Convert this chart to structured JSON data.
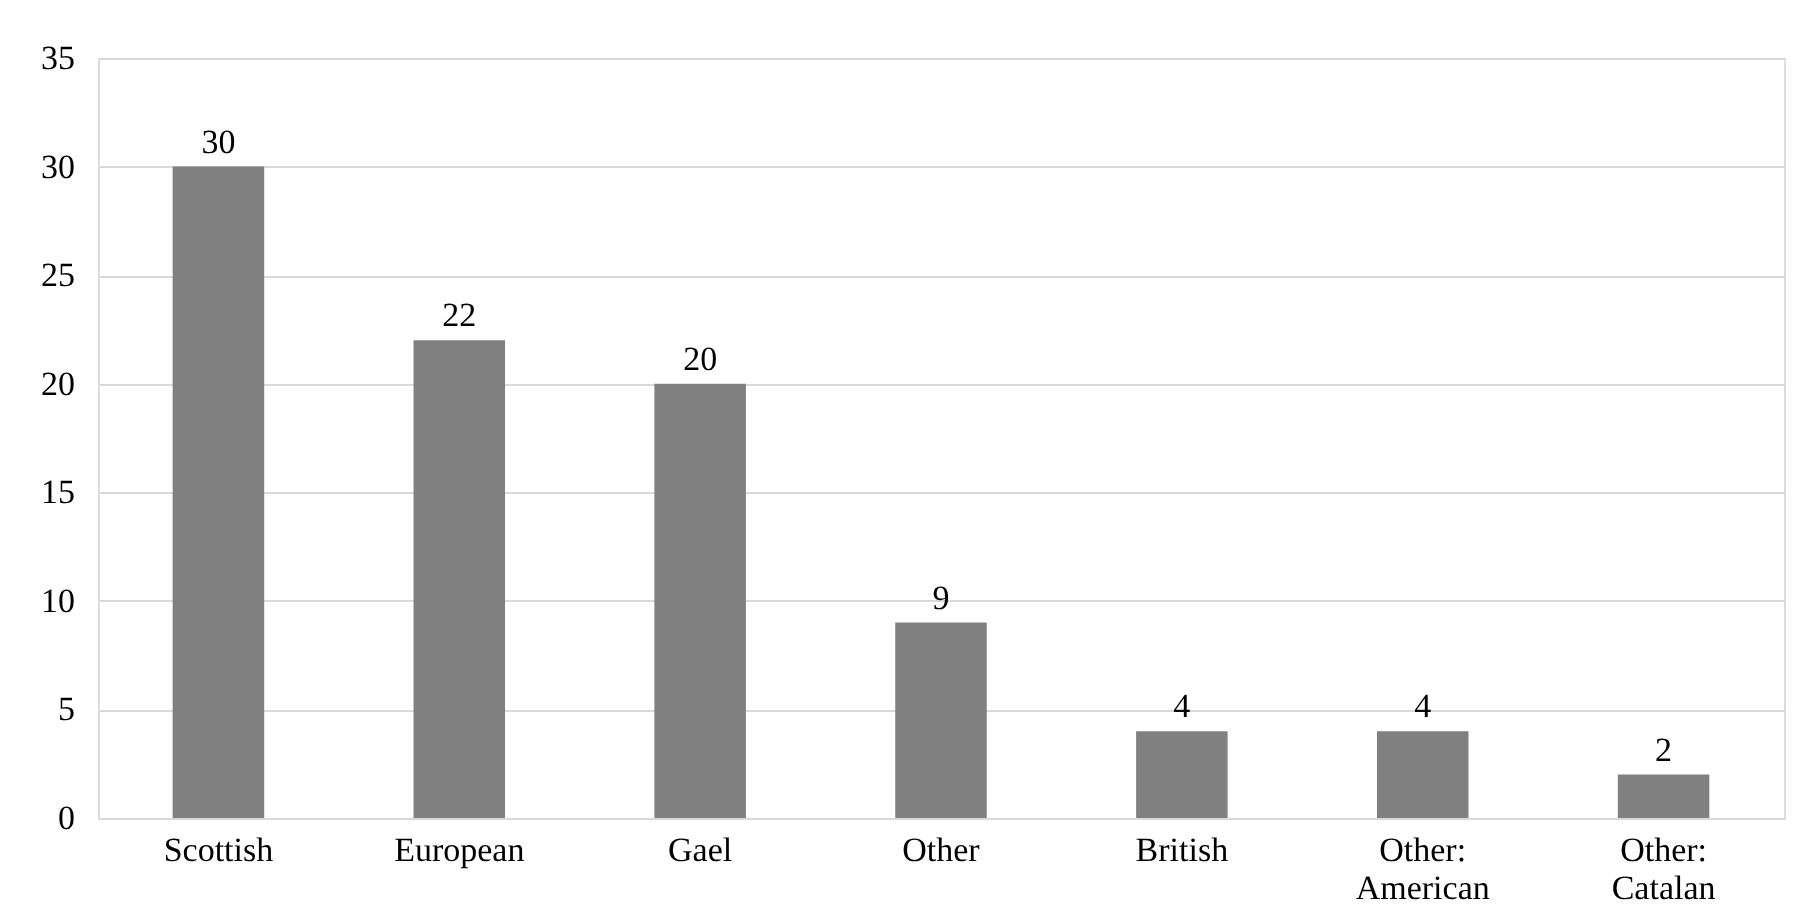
{
  "chart_data": {
    "type": "bar",
    "categories": [
      "Scottish",
      "European",
      "Gael",
      "Other",
      "British",
      "Other: American",
      "Other: Catalan"
    ],
    "values": [
      30,
      22,
      20,
      9,
      4,
      4,
      2
    ],
    "color": "#808080",
    "ylim": [
      0,
      35
    ],
    "yticks": [
      0,
      5,
      10,
      15,
      20,
      25,
      30,
      35
    ],
    "grid": "y",
    "data_labels": true
  }
}
